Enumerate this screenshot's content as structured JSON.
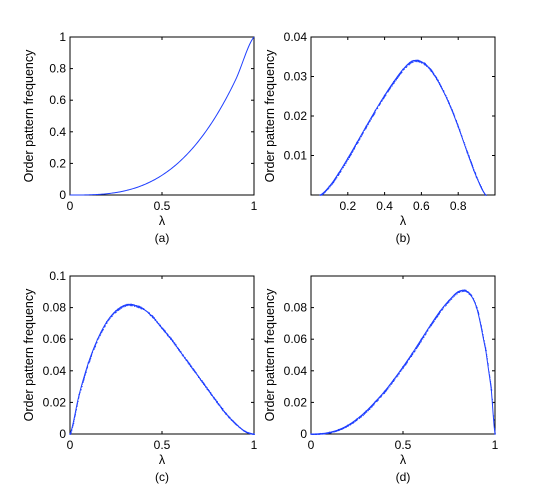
{
  "accent_color": "#1f3fff",
  "chart_data": [
    {
      "type": "line",
      "caption": "(a)",
      "xlabel": "λ",
      "ylabel": "Order pattern frequency",
      "xlim": [
        0,
        1
      ],
      "ylim": [
        0,
        1
      ],
      "xticks": [
        "0",
        "0.5",
        "1"
      ],
      "yticks": [
        "0",
        "0.2",
        "0.4",
        "0.6",
        "0.8",
        "1"
      ],
      "series": [
        {
          "x": [
            0,
            0.1,
            0.2,
            0.3,
            0.4,
            0.5,
            0.6,
            0.7,
            0.8,
            0.9,
            1.0
          ],
          "values": [
            0,
            0.001,
            0.008,
            0.027,
            0.064,
            0.125,
            0.216,
            0.343,
            0.512,
            0.729,
            1.0
          ]
        }
      ]
    },
    {
      "type": "scatter",
      "caption": "(b)",
      "xlabel": "λ",
      "ylabel": "Order pattern frequency",
      "xlim": [
        0,
        1
      ],
      "ylim": [
        0,
        0.04
      ],
      "xticks": [
        "0.2",
        "0.4",
        "0.6",
        "0.8"
      ],
      "yticks": [
        "0.01",
        "0.02",
        "0.03",
        "0.04"
      ],
      "series": [
        {
          "x": [
            0.05,
            0.1,
            0.15,
            0.2,
            0.25,
            0.3,
            0.35,
            0.4,
            0.45,
            0.5,
            0.55,
            0.6,
            0.65,
            0.7,
            0.75,
            0.8,
            0.85,
            0.9,
            0.95
          ],
          "values": [
            0,
            0.0022,
            0.0055,
            0.0093,
            0.0133,
            0.0174,
            0.0214,
            0.0252,
            0.0287,
            0.0318,
            0.0339,
            0.0337,
            0.0317,
            0.028,
            0.0232,
            0.0173,
            0.0107,
            0.0045,
            0
          ]
        }
      ]
    },
    {
      "type": "scatter",
      "caption": "(c)",
      "xlabel": "λ",
      "ylabel": "Order pattern frequency",
      "xlim": [
        0,
        1
      ],
      "ylim": [
        0,
        0.1
      ],
      "xticks": [
        "0",
        "0.5",
        "1"
      ],
      "yticks": [
        "0",
        "0.02",
        "0.04",
        "0.06",
        "0.08",
        "0.1"
      ],
      "series": [
        {
          "x": [
            0,
            0.05,
            0.1,
            0.15,
            0.2,
            0.25,
            0.3,
            0.33,
            0.35,
            0.4,
            0.45,
            0.5,
            0.55,
            0.6,
            0.65,
            0.7,
            0.75,
            0.8,
            0.85,
            0.9,
            0.95,
            1.0
          ],
          "values": [
            0,
            0.025,
            0.045,
            0.06,
            0.071,
            0.078,
            0.0815,
            0.082,
            0.0815,
            0.079,
            0.074,
            0.067,
            0.06,
            0.052,
            0.044,
            0.036,
            0.028,
            0.02,
            0.0125,
            0.0065,
            0.0018,
            0
          ]
        }
      ]
    },
    {
      "type": "scatter",
      "caption": "(d)",
      "xlabel": "λ",
      "ylabel": "Order pattern frequency",
      "xlim": [
        0,
        1
      ],
      "ylim": [
        0,
        0.1
      ],
      "xticks": [
        "0",
        "0.5",
        "1"
      ],
      "yticks": [
        "0",
        "0.02",
        "0.04",
        "0.06",
        "0.08"
      ],
      "series": [
        {
          "x": [
            0,
            0.05,
            0.1,
            0.15,
            0.2,
            0.25,
            0.3,
            0.35,
            0.4,
            0.45,
            0.5,
            0.55,
            0.6,
            0.65,
            0.7,
            0.75,
            0.8,
            0.85,
            0.9,
            0.95,
            0.98,
            1.0
          ],
          "values": [
            0,
            0.0002,
            0.001,
            0.0027,
            0.0055,
            0.0095,
            0.0145,
            0.0205,
            0.027,
            0.0345,
            0.0425,
            0.051,
            0.06,
            0.069,
            0.0775,
            0.0845,
            0.09,
            0.09,
            0.08,
            0.053,
            0.028,
            0
          ]
        }
      ]
    }
  ]
}
